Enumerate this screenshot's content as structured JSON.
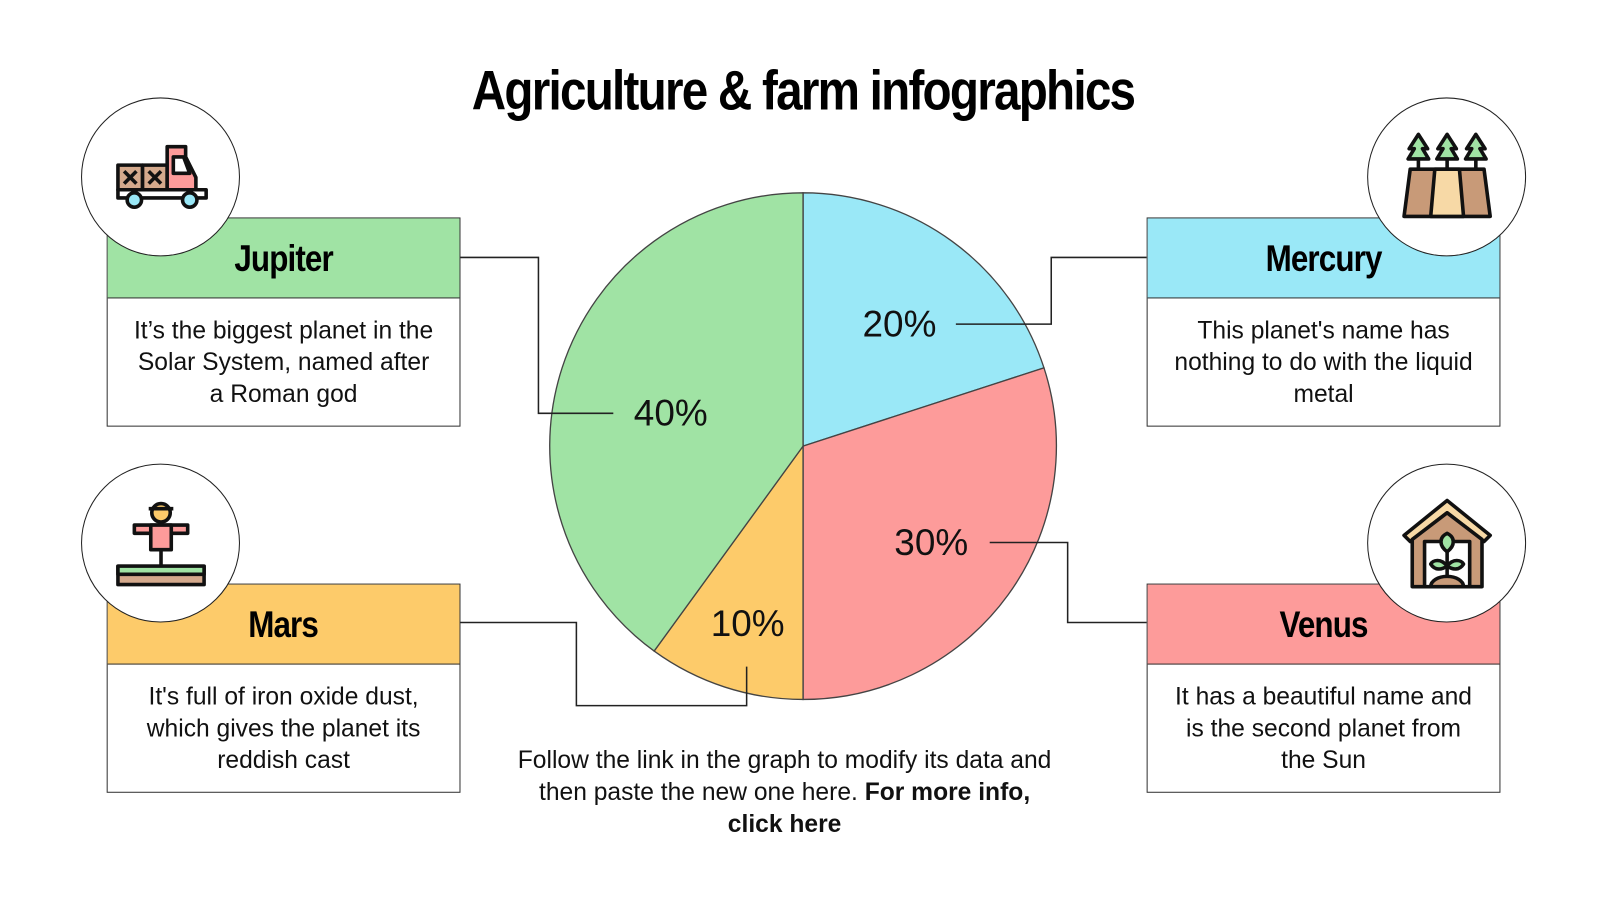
{
  "title": "Agriculture & farm infographics",
  "cards": {
    "jupiter": {
      "name": "Jupiter",
      "text": "It’s the biggest planet in the Solar System, named after a Roman god",
      "color": "#a0e3a4",
      "icon": "truck-icon"
    },
    "mercury": {
      "name": "Mercury",
      "text": "This planet's name has nothing to do with the liquid metal",
      "color": "#9ae8f7",
      "icon": "forest-field-icon"
    },
    "mars": {
      "name": "Mars",
      "text": "It's full of iron oxide dust, which gives the planet its reddish cast",
      "color": "#fdcb6a",
      "icon": "scarecrow-icon"
    },
    "venus": {
      "name": "Venus",
      "text": "It has a beautiful name and is the second planet from the Sun",
      "color": "#fd9b9a",
      "icon": "greenhouse-icon"
    }
  },
  "footer": {
    "text": "Follow the link in the graph to modify its data and then paste the new one here.",
    "link": "For more info, click here"
  },
  "chart_data": {
    "type": "pie",
    "start": "top, clockwise",
    "slices": [
      {
        "category": "Mercury",
        "value": 20,
        "label": "20%",
        "color": "#9ae8f7"
      },
      {
        "category": "Venus",
        "value": 30,
        "label": "30%",
        "color": "#fd9b9a"
      },
      {
        "category": "Mars",
        "value": 10,
        "label": "10%",
        "color": "#fdcb6a"
      },
      {
        "category": "Jupiter",
        "value": 40,
        "label": "40%",
        "color": "#a0e3a4"
      }
    ]
  }
}
